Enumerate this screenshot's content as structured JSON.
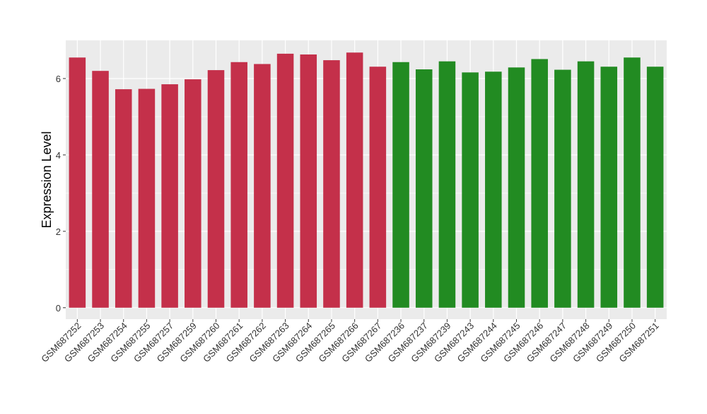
{
  "chart_data": {
    "type": "bar",
    "title": "",
    "xlabel": "",
    "ylabel": "Expression Level",
    "ylim": [
      -0.3,
      7.0
    ],
    "yticks": [
      0,
      2,
      4,
      6
    ],
    "grid": true,
    "legend": "none",
    "background_color": "#ebebeb",
    "grid_color": "#ffffff",
    "categories": [
      "GSM687252",
      "GSM687253",
      "GSM687254",
      "GSM687255",
      "GSM687257",
      "GSM687259",
      "GSM687260",
      "GSM687261",
      "GSM687262",
      "GSM687263",
      "GSM687264",
      "GSM687265",
      "GSM687266",
      "GSM687267",
      "GSM687236",
      "GSM687237",
      "GSM687239",
      "GSM687243",
      "GSM687244",
      "GSM687245",
      "GSM687246",
      "GSM687247",
      "GSM687248",
      "GSM687249",
      "GSM687250",
      "GSM687251"
    ],
    "values": [
      6.55,
      6.2,
      5.72,
      5.73,
      5.85,
      5.98,
      6.22,
      6.43,
      6.38,
      6.65,
      6.63,
      6.48,
      6.68,
      6.31,
      6.43,
      6.24,
      6.45,
      6.16,
      6.18,
      6.29,
      6.51,
      6.23,
      6.45,
      6.31,
      6.55,
      6.31
    ],
    "colors": [
      "#c4304a",
      "#c4304a",
      "#c4304a",
      "#c4304a",
      "#c4304a",
      "#c4304a",
      "#c4304a",
      "#c4304a",
      "#c4304a",
      "#c4304a",
      "#c4304a",
      "#c4304a",
      "#c4304a",
      "#c4304a",
      "#228b22",
      "#228b22",
      "#228b22",
      "#228b22",
      "#228b22",
      "#228b22",
      "#228b22",
      "#228b22",
      "#228b22",
      "#228b22",
      "#228b22",
      "#228b22"
    ]
  }
}
